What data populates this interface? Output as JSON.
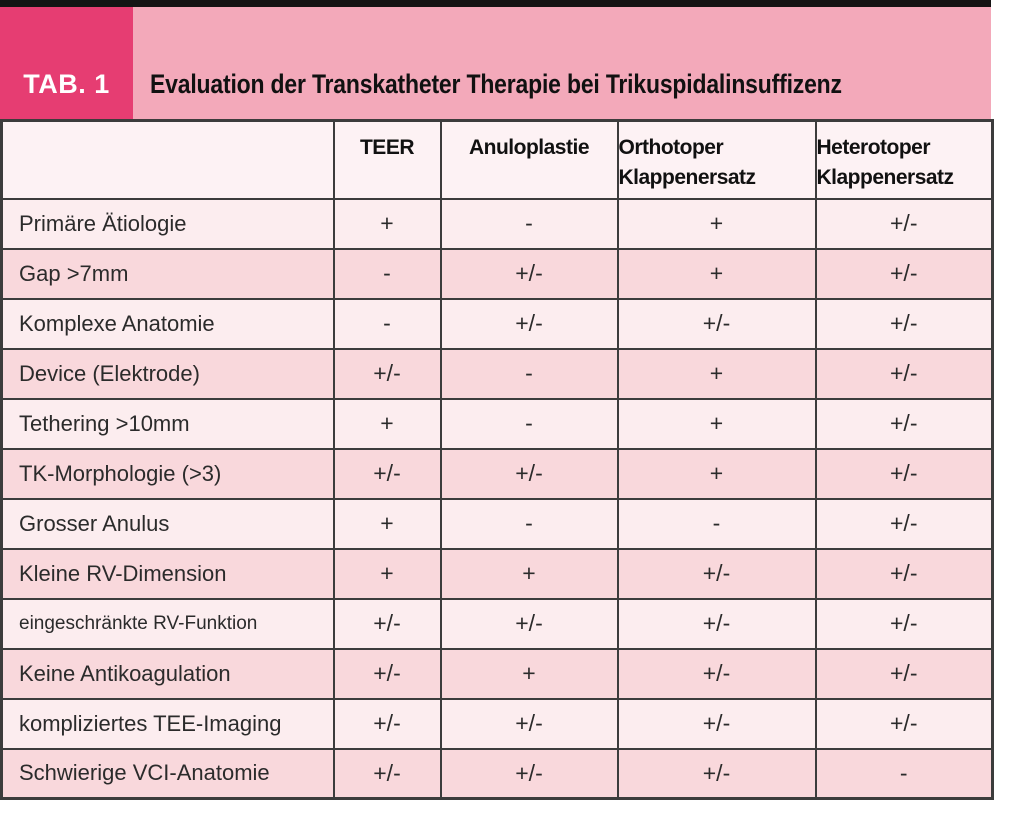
{
  "tag": "TAB. 1",
  "title": "Evaluation der Transkatheter Therapie bei Trikuspidalinsuffizenz",
  "columns": [
    "TEER",
    "Anuloplastie",
    "Orthotoper Klappenersatz",
    "Heterotoper Klappenersatz"
  ],
  "rows": [
    {
      "label": "Primäre Ätiologie",
      "values": [
        "+",
        "-",
        "+",
        "+/-"
      ]
    },
    {
      "label": "Gap >7mm",
      "values": [
        "-",
        "+/-",
        "+",
        "+/-"
      ]
    },
    {
      "label": "Komplexe Anatomie",
      "values": [
        "-",
        "+/-",
        "+/-",
        "+/-"
      ]
    },
    {
      "label": "Device (Elektrode)",
      "values": [
        "+/-",
        "-",
        "+",
        "+/-"
      ]
    },
    {
      "label": "Tethering >10mm",
      "values": [
        "+",
        "-",
        "+",
        "+/-"
      ]
    },
    {
      "label": "TK-Morphologie (>3)",
      "values": [
        "+/-",
        "+/-",
        "+",
        "+/-"
      ]
    },
    {
      "label": "Grosser Anulus",
      "values": [
        "+",
        "-",
        "-",
        "+/-"
      ]
    },
    {
      "label": "Kleine RV-Dimension",
      "values": [
        "+",
        "+",
        "+/-",
        "+/-"
      ]
    },
    {
      "label": "eingeschränkte RV-Funktion",
      "values": [
        "+/-",
        "+/-",
        "+/-",
        "+/-"
      ],
      "small": true
    },
    {
      "label": "Keine Antikoagulation",
      "values": [
        "+/-",
        "+",
        "+/-",
        "+/-"
      ]
    },
    {
      "label": "kompliziertes TEE-Imaging",
      "values": [
        "+/-",
        "+/-",
        "+/-",
        "+/-"
      ]
    },
    {
      "label": "Schwierige VCI-Anatomie",
      "values": [
        "+/-",
        "+/-",
        "+/-",
        "-"
      ]
    }
  ],
  "colors": {
    "top_bar": "#141414",
    "tab_box": "#e63d72",
    "tab_text": "#ffffff",
    "band": "#f3a9ba",
    "title_color": "#111111",
    "header_bg": "#fdf2f4",
    "row_light": "#fcedef",
    "row_dark": "#f9d8dc",
    "border": "#3c3c3c"
  }
}
